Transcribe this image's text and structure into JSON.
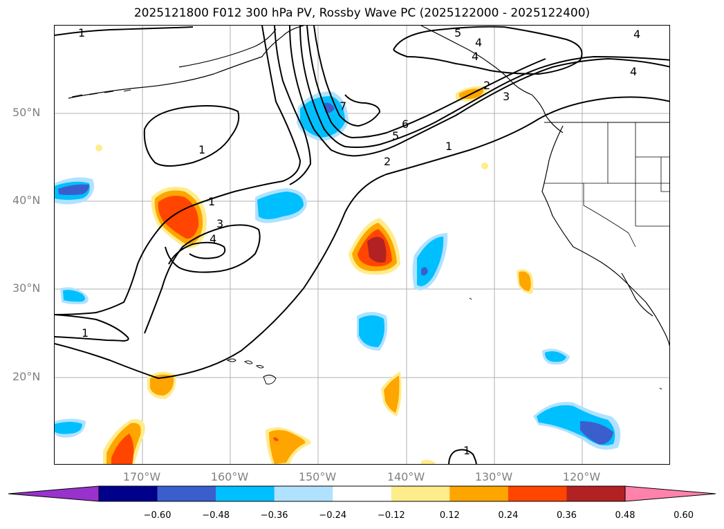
{
  "title": "2025121800 F012 300 hPa PV, Rossby Wave PC (2025122000 - 2025122400)",
  "lat_labels": [
    "50°N",
    "40°N",
    "30°N",
    "20°N"
  ],
  "lon_labels": [
    "170°W",
    "160°W",
    "150°W",
    "140°W",
    "130°W",
    "120°W"
  ],
  "contour_labels": [
    "1",
    "1",
    "1",
    "1",
    "2",
    "3",
    "4",
    "1",
    "5",
    "6",
    "7",
    "5",
    "4",
    "4",
    "1",
    "2",
    "3",
    "4",
    "4"
  ],
  "colorbar": {
    "tick_labels": [
      "−0.60",
      "−0.48",
      "−0.36",
      "−0.24",
      "−0.12",
      "0.12",
      "0.24",
      "0.36",
      "0.48",
      "0.60"
    ],
    "colors": [
      "#9932cc",
      "#00008b",
      "#3a5fcd",
      "#00bfff",
      "#b0e2ff",
      "#ffffff",
      "#ffec8b",
      "#ffa500",
      "#ff4500",
      "#b22222",
      "#ff82ab"
    ]
  }
}
